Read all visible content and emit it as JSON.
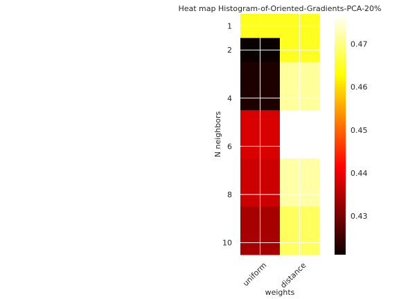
{
  "chart_data": {
    "type": "heatmap",
    "title": "Heat map Histogram-of-Oriented-Gradients-PCA-20%",
    "xlabel": "weights",
    "ylabel": "N neighbors",
    "x_categories": [
      "uniform",
      "distance"
    ],
    "y_categories": [
      "1",
      "2",
      "4",
      "6",
      "8",
      "10"
    ],
    "y_rows": [
      1,
      2,
      3,
      4,
      5,
      6,
      7,
      8,
      9,
      10
    ],
    "values": [
      [
        0.4645,
        0.4645
      ],
      [
        0.421,
        0.4645
      ],
      [
        0.4225,
        0.4715
      ],
      [
        0.4225,
        0.4715
      ],
      [
        0.4375,
        0.477
      ],
      [
        0.4375,
        0.477
      ],
      [
        0.4365,
        0.472
      ],
      [
        0.4365,
        0.472
      ],
      [
        0.4335,
        0.468
      ],
      [
        0.4335,
        0.468
      ]
    ],
    "colormap": "hot",
    "colorbar": {
      "range": [
        0.421,
        0.477
      ],
      "ticks": [
        0.43,
        0.44,
        0.45,
        0.46,
        0.47
      ],
      "tick_labels": [
        "0.43",
        "0.44",
        "0.45",
        "0.46",
        "0.47"
      ]
    },
    "grid": true
  }
}
